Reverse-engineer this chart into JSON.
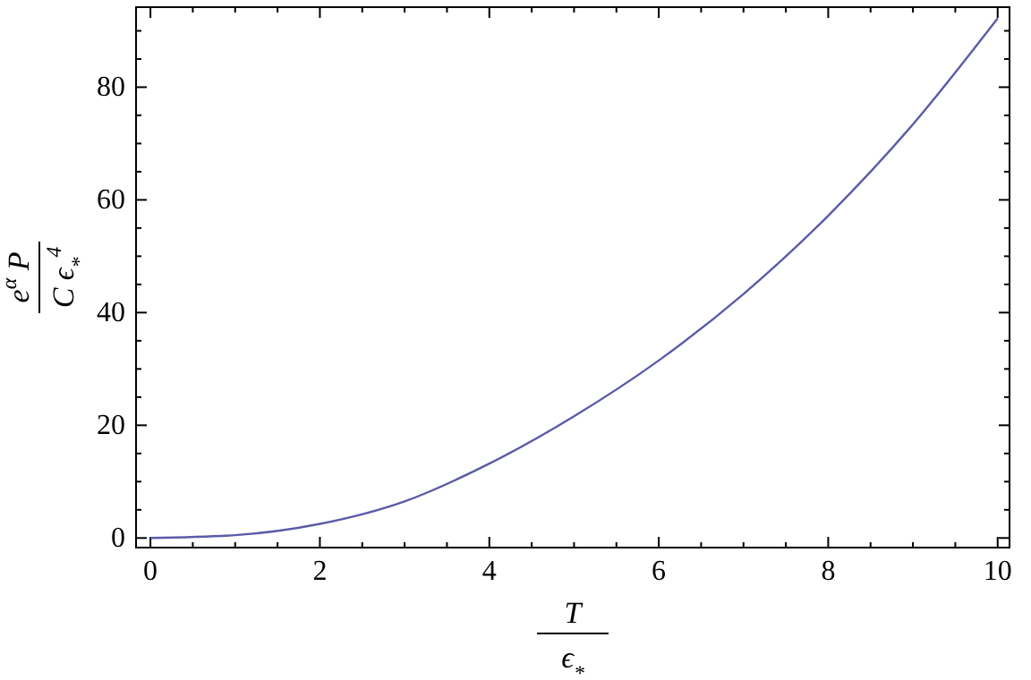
{
  "chart_data": {
    "type": "line",
    "xlabel": "T\nϵ$_{*}$",
    "ylabel": "e$^{α}$ P\nC ϵ$_{*}$$^{4}$",
    "x": [
      0,
      1,
      2,
      3,
      4,
      5,
      6,
      7,
      8,
      9,
      10
    ],
    "series": [
      {
        "color": "#5b5ba8",
        "values": [
          0,
          0.5,
          2.5,
          6.5,
          13.2,
          21.6,
          31.5,
          43.3,
          57.2,
          73.4,
          92.2
        ]
      }
    ],
    "xlim": [
      -0.17,
      10.14
    ],
    "ylim": [
      -1.7,
      94.2
    ],
    "xticks": [
      0,
      {
        "value": 0.5,
        "label": null
      },
      {
        "value": 1,
        "label": null
      },
      {
        "value": 1.5,
        "label": null
      },
      2,
      {
        "value": 2.5,
        "label": null
      },
      {
        "value": 3,
        "label": null
      },
      {
        "value": 3.5,
        "label": null
      },
      4,
      {
        "value": 4.5,
        "label": null
      },
      {
        "value": 5,
        "label": null
      },
      {
        "value": 5.5,
        "label": null
      },
      6,
      {
        "value": 6.5,
        "label": null
      },
      {
        "value": 7,
        "label": null
      },
      {
        "value": 7.5,
        "label": null
      },
      8,
      {
        "value": 8.5,
        "label": null
      },
      {
        "value": 9,
        "label": null
      },
      {
        "value": 9.5,
        "label": null
      },
      10
    ],
    "yticks": [
      0,
      {
        "value": 5,
        "label": null
      },
      {
        "value": 10,
        "label": null
      },
      {
        "value": 15,
        "label": null
      },
      20,
      {
        "value": 25,
        "label": null
      },
      {
        "value": 30,
        "label": null
      },
      {
        "value": 35,
        "label": null
      },
      40,
      {
        "value": 45,
        "label": null
      },
      {
        "value": 50,
        "label": null
      },
      {
        "value": 55,
        "label": null
      },
      60,
      {
        "value": 65,
        "label": null
      },
      {
        "value": 70,
        "label": null
      },
      {
        "value": 75,
        "label": null
      },
      80,
      {
        "value": 85,
        "label": null
      },
      {
        "value": 90,
        "label": null
      }
    ],
    "grid": false,
    "marker": "none",
    "line_style": "solid"
  }
}
